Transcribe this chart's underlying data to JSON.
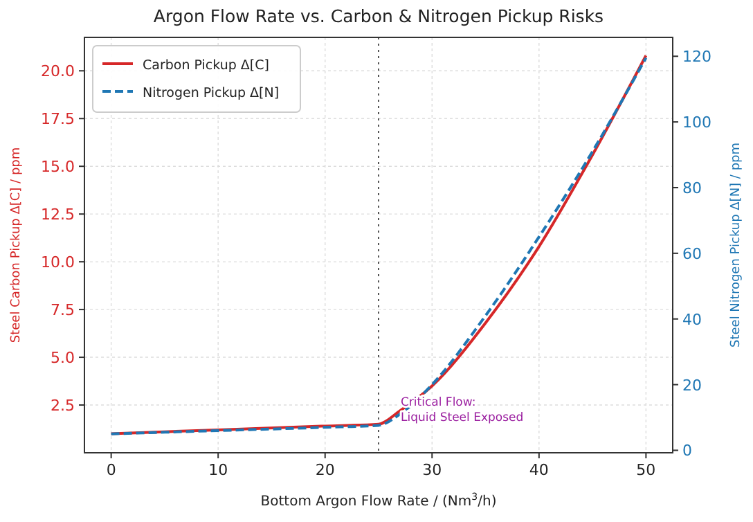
{
  "chart_data": {
    "type": "line",
    "title": "Argon Flow Rate vs. Carbon & Nitrogen Pickup Risks",
    "xlabel": "Bottom Argon Flow Rate / (Nm$^{3}$/h)",
    "ylabel": "Steel Carbon Pickup Δ[C] / ppm",
    "y2label": "Steel Nitrogen Pickup Δ[N] / ppm",
    "x": [
      0,
      10,
      20,
      25,
      27,
      30,
      35,
      40,
      45,
      50
    ],
    "series": [
      {
        "name": "Carbon Pickup Δ[C]",
        "color": "#d62728",
        "line_style": "solid",
        "values": [
          1.0,
          1.2,
          1.4,
          1.5,
          2.2,
          3.5,
          6.8,
          10.8,
          15.6,
          20.8
        ]
      },
      {
        "name": "Nitrogen Pickup Δ[N]",
        "color": "#1f77b4",
        "line_style": "dashed",
        "axis": "y2",
        "values": [
          5,
          6,
          7,
          7.6,
          11,
          20,
          41,
          65,
          91,
          119.5
        ]
      }
    ],
    "xlim": [
      -2.5,
      52.5
    ],
    "xticks": [
      0,
      10,
      20,
      30,
      40,
      50
    ],
    "ylim": [
      0,
      21.75
    ],
    "yticks": [
      2.5,
      {
        "value": 5,
        "label": "5.0"
      },
      7.5,
      {
        "value": 10,
        "label": "10.0"
      },
      12.5,
      {
        "value": 15,
        "label": "15.0"
      },
      17.5,
      {
        "value": 20,
        "label": "20.0"
      }
    ],
    "y2lim": [
      -0.75,
      125.75
    ],
    "y2ticks": [
      0,
      20,
      40,
      60,
      80,
      100,
      120
    ],
    "ref_lines": [
      {
        "axis": "x",
        "value": 25,
        "label": "Critical Flow:\nLiquid Steel Exposed",
        "color": "#555555",
        "line_style": "dotted"
      }
    ],
    "grid": true,
    "legend": "top left",
    "marker": "none"
  }
}
